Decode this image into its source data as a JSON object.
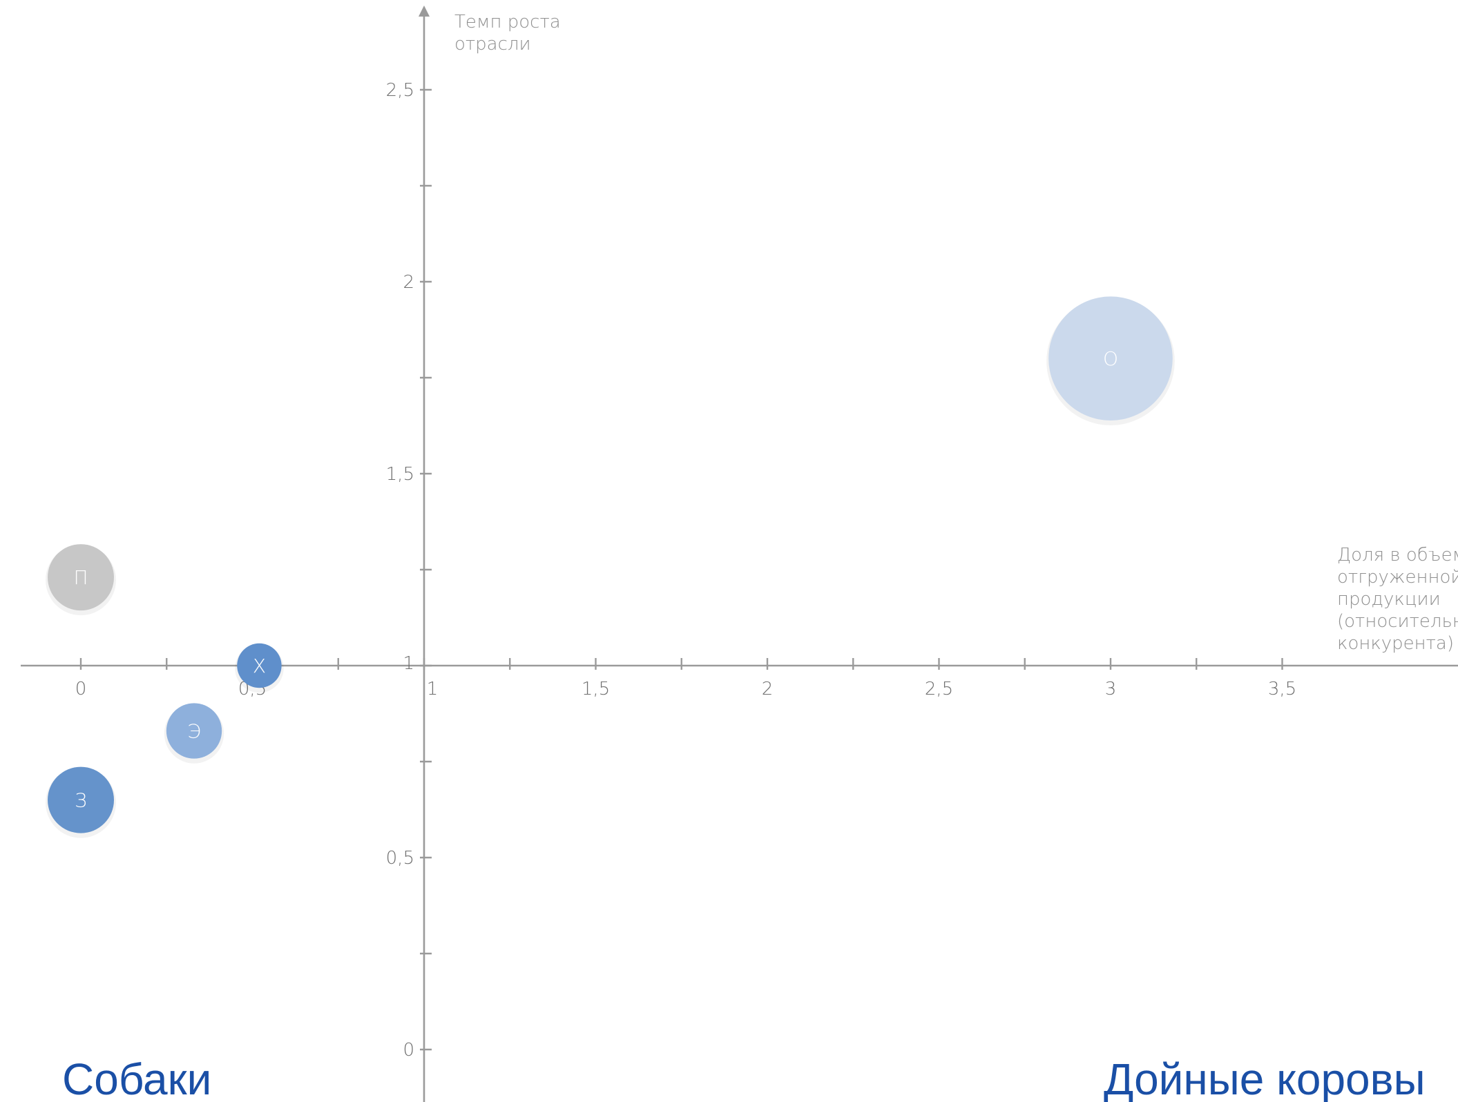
{
  "chart_data": {
    "type": "scatter",
    "subtype": "bubble",
    "title": "",
    "xlabel_lines": [
      "Доля в объеме",
      "отгруженной",
      "продукции",
      "(относительно",
      "конкурента)"
    ],
    "ylabel_lines": [
      "Темп роста",
      "отрасли"
    ],
    "x_ticks": [
      {
        "value": 0,
        "label": "0"
      },
      {
        "value": 0.5,
        "label": "0,5"
      },
      {
        "value": 1,
        "label": "1"
      },
      {
        "value": 1.5,
        "label": "1,5"
      },
      {
        "value": 2,
        "label": "2"
      },
      {
        "value": 2.5,
        "label": "2,5"
      },
      {
        "value": 3,
        "label": "3"
      },
      {
        "value": 3.5,
        "label": "3,5"
      }
    ],
    "x_minor_ticks": [
      0.25,
      0.75,
      1.25,
      1.75,
      2.25,
      2.75,
      3.25
    ],
    "y_ticks": [
      {
        "value": 0,
        "label": "0"
      },
      {
        "value": 0.5,
        "label": "0,5"
      },
      {
        "value": 1,
        "label": "1"
      },
      {
        "value": 1.5,
        "label": "1,5"
      },
      {
        "value": 2,
        "label": "2"
      },
      {
        "value": 2.5,
        "label": "2,5"
      }
    ],
    "y_minor_ticks": [
      0.25,
      0.75,
      1.25,
      1.75,
      2.25
    ],
    "xlim": [
      -0.16,
      4.0
    ],
    "ylim": [
      -0.15,
      2.8
    ],
    "axes_cross": {
      "x": 1,
      "y": 1
    },
    "quadrant_labels": {
      "bottom_left": "Собаки",
      "bottom_right": "Дойные коровы"
    },
    "points": [
      {
        "label": "П",
        "x": 0.0,
        "y": 1.23,
        "size": 1.0,
        "color": "#c7c7c7"
      },
      {
        "label": "Х",
        "x": 0.52,
        "y": 1.0,
        "size": 0.45,
        "color": "#5f8fcb"
      },
      {
        "label": "Э",
        "x": 0.33,
        "y": 0.83,
        "size": 0.7,
        "color": "#8eb0dc"
      },
      {
        "label": "З",
        "x": 0.0,
        "y": 0.65,
        "size": 1.0,
        "color": "#6593cb"
      },
      {
        "label": "О",
        "x": 3.0,
        "y": 1.8,
        "size": 3.5,
        "color": "#cbd9ec"
      }
    ]
  }
}
